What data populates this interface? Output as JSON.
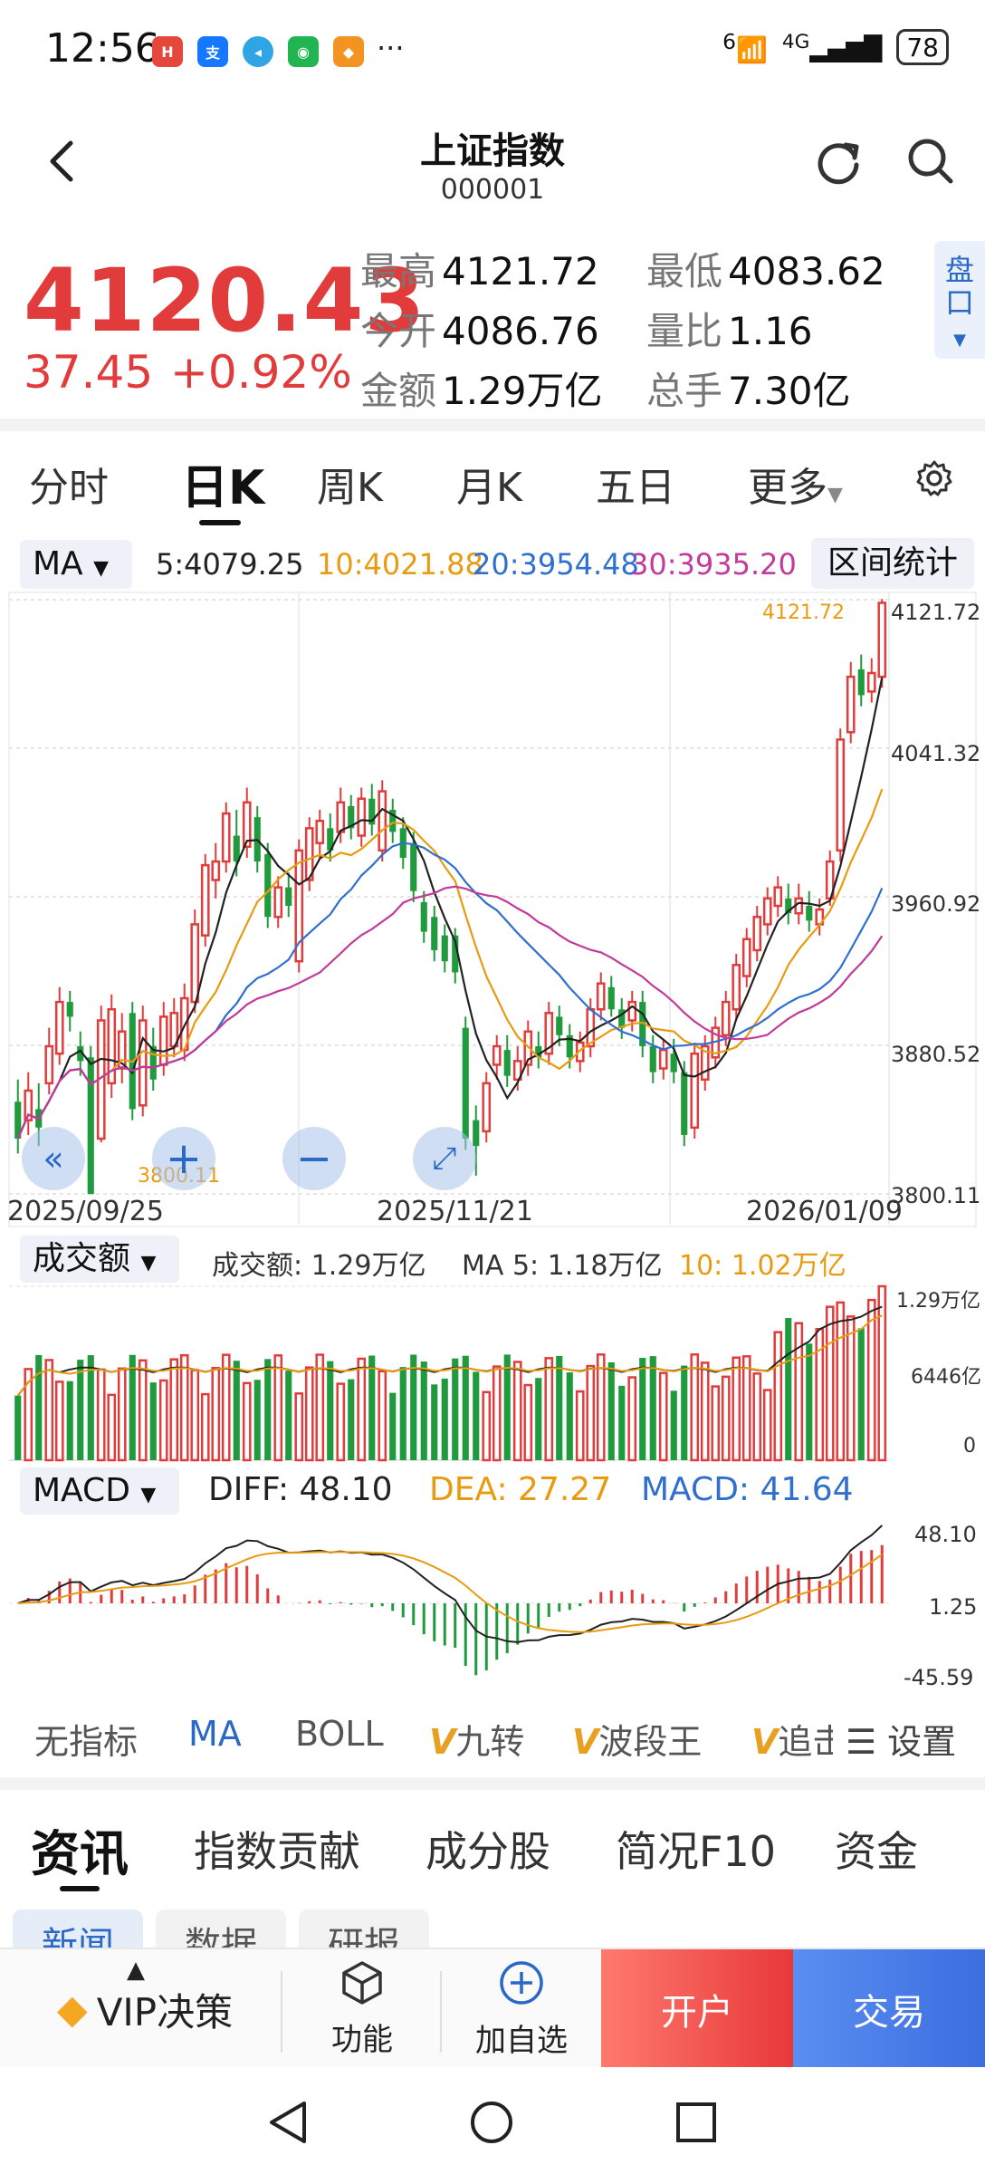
{
  "status": {
    "time": "12:56",
    "app_icons": [
      "huawei",
      "alipay",
      "browser",
      "wechat",
      "app"
    ],
    "more": "···",
    "network_6": "6",
    "network_4g": "4G",
    "battery": "78"
  },
  "header": {
    "title": "上证指数",
    "code": "000001"
  },
  "quote": {
    "price": "4120.43",
    "change": "37.45",
    "change_pct": "+0.92%",
    "high_label": "最高",
    "high": "4121.72",
    "low_label": "最低",
    "low": "4083.62",
    "open_label": "今开",
    "open": "4086.76",
    "ratio_label": "量比",
    "ratio": "1.16",
    "amount_label": "金额",
    "amount": "1.29万亿",
    "turnover_label": "总手",
    "turnover": "7.30亿",
    "pan_label": "盘口"
  },
  "tabs": [
    "分时",
    "日K",
    "周K",
    "月K",
    "五日",
    "更多"
  ],
  "ma": {
    "select": "MA",
    "ma5": "5:4079.25",
    "ma10": "10:4021.88",
    "ma20": "20:3954.48",
    "ma30": "30:3935.20",
    "range_stats": "区间统计"
  },
  "kline": {
    "yticks": [
      "4121.72",
      "4041.32",
      "3960.92",
      "3880.52",
      "3800.11"
    ],
    "xticks": [
      "2025/09/25",
      "2025/11/21",
      "2026/01/09"
    ],
    "max_label": "4121.72",
    "min_label": "3800.11"
  },
  "volume": {
    "select": "成交额",
    "amount": "成交额: 1.29万亿",
    "ma5": "MA 5: 1.18万亿",
    "ma10": "10: 1.02万亿",
    "yticks": [
      "1.29万亿",
      "6446亿",
      "0"
    ]
  },
  "macd": {
    "select": "MACD",
    "diff": "DIFF: 48.10",
    "dea": "DEA: 27.27",
    "macd": "MACD: 41.64",
    "yticks": [
      "48.10",
      "1.25",
      "-45.59"
    ]
  },
  "indicators": [
    "无指标",
    "MA",
    "BOLL",
    "九转",
    "波段王",
    "追击",
    "设置"
  ],
  "news_tabs": [
    "资讯",
    "指数贡献",
    "成分股",
    "简况F10",
    "资金"
  ],
  "chips": [
    "新闻",
    "数据",
    "研报"
  ],
  "bottom": {
    "vip": "VIP决策",
    "func": "功能",
    "add": "加自选",
    "open": "开户",
    "trade": "交易"
  },
  "colors": {
    "up": "#e23b3b",
    "down": "#1f9a3c",
    "ma5": "#222222",
    "ma10": "#e89b10",
    "ma20": "#2f6fd0",
    "ma30": "#c23a9a"
  },
  "chart_data": {
    "type": "candlestick",
    "ylim": [
      3800.11,
      4121.72
    ],
    "x_range": [
      "2025/09/25",
      "2026/01/09"
    ],
    "last_close": 4120.43,
    "ma": {
      "ma5": 4079.25,
      "ma10": 4021.88,
      "ma20": 3954.48,
      "ma30": 3935.2
    },
    "candles": [
      {
        "o": 3850,
        "c": 3830,
        "h": 3862,
        "l": 3822
      },
      {
        "o": 3840,
        "c": 3856,
        "h": 3866,
        "l": 3832
      },
      {
        "o": 3846,
        "c": 3836,
        "h": 3860,
        "l": 3826
      },
      {
        "o": 3860,
        "c": 3880,
        "h": 3890,
        "l": 3854
      },
      {
        "o": 3876,
        "c": 3904,
        "h": 3912,
        "l": 3870
      },
      {
        "o": 3904,
        "c": 3896,
        "h": 3910,
        "l": 3888
      },
      {
        "o": 3880,
        "c": 3872,
        "h": 3888,
        "l": 3864
      },
      {
        "o": 3874,
        "c": 3800,
        "h": 3880,
        "l": 3800
      },
      {
        "o": 3830,
        "c": 3894,
        "h": 3902,
        "l": 3828
      },
      {
        "o": 3860,
        "c": 3900,
        "h": 3908,
        "l": 3852
      },
      {
        "o": 3868,
        "c": 3888,
        "h": 3898,
        "l": 3860
      },
      {
        "o": 3898,
        "c": 3846,
        "h": 3904,
        "l": 3840
      },
      {
        "o": 3848,
        "c": 3894,
        "h": 3902,
        "l": 3842
      },
      {
        "o": 3880,
        "c": 3862,
        "h": 3890,
        "l": 3856
      },
      {
        "o": 3870,
        "c": 3896,
        "h": 3904,
        "l": 3864
      },
      {
        "o": 3880,
        "c": 3898,
        "h": 3906,
        "l": 3874
      },
      {
        "o": 3878,
        "c": 3906,
        "h": 3914,
        "l": 3872
      },
      {
        "o": 3904,
        "c": 3946,
        "h": 3954,
        "l": 3898
      },
      {
        "o": 3940,
        "c": 3978,
        "h": 3984,
        "l": 3934
      },
      {
        "o": 3970,
        "c": 3980,
        "h": 3990,
        "l": 3960
      },
      {
        "o": 3980,
        "c": 4006,
        "h": 4012,
        "l": 3974
      },
      {
        "o": 3994,
        "c": 3980,
        "h": 4008,
        "l": 3972
      },
      {
        "o": 3988,
        "c": 4012,
        "h": 4020,
        "l": 3982
      },
      {
        "o": 4004,
        "c": 3980,
        "h": 4010,
        "l": 3974
      },
      {
        "o": 3984,
        "c": 3950,
        "h": 3990,
        "l": 3944
      },
      {
        "o": 3950,
        "c": 3966,
        "h": 3972,
        "l": 3944
      },
      {
        "o": 3966,
        "c": 3956,
        "h": 3974,
        "l": 3950
      },
      {
        "o": 3926,
        "c": 3986,
        "h": 3992,
        "l": 3920
      },
      {
        "o": 3970,
        "c": 3998,
        "h": 4004,
        "l": 3964
      },
      {
        "o": 3990,
        "c": 4002,
        "h": 4008,
        "l": 3982
      },
      {
        "o": 3998,
        "c": 3986,
        "h": 4006,
        "l": 3980
      },
      {
        "o": 3996,
        "c": 4012,
        "h": 4020,
        "l": 3990
      },
      {
        "o": 4010,
        "c": 3998,
        "h": 4016,
        "l": 3992
      },
      {
        "o": 3994,
        "c": 4014,
        "h": 4020,
        "l": 3988
      },
      {
        "o": 4014,
        "c": 4000,
        "h": 4022,
        "l": 3994
      },
      {
        "o": 3986,
        "c": 4018,
        "h": 4024,
        "l": 3980
      },
      {
        "o": 4008,
        "c": 3996,
        "h": 4014,
        "l": 3990
      },
      {
        "o": 3998,
        "c": 3982,
        "h": 4004,
        "l": 3976
      },
      {
        "o": 3990,
        "c": 3964,
        "h": 3996,
        "l": 3958
      },
      {
        "o": 3958,
        "c": 3942,
        "h": 3964,
        "l": 3936
      },
      {
        "o": 3950,
        "c": 3932,
        "h": 3956,
        "l": 3926
      },
      {
        "o": 3940,
        "c": 3926,
        "h": 3946,
        "l": 3920
      },
      {
        "o": 3940,
        "c": 3920,
        "h": 3944,
        "l": 3914
      },
      {
        "o": 3890,
        "c": 3830,
        "h": 3896,
        "l": 3824
      },
      {
        "o": 3840,
        "c": 3826,
        "h": 3848,
        "l": 3810
      },
      {
        "o": 3834,
        "c": 3860,
        "h": 3866,
        "l": 3828
      },
      {
        "o": 3870,
        "c": 3880,
        "h": 3886,
        "l": 3862
      },
      {
        "o": 3878,
        "c": 3864,
        "h": 3886,
        "l": 3858
      },
      {
        "o": 3862,
        "c": 3872,
        "h": 3880,
        "l": 3856
      },
      {
        "o": 3870,
        "c": 3888,
        "h": 3894,
        "l": 3864
      },
      {
        "o": 3880,
        "c": 3874,
        "h": 3888,
        "l": 3868
      },
      {
        "o": 3876,
        "c": 3898,
        "h": 3904,
        "l": 3870
      },
      {
        "o": 3896,
        "c": 3886,
        "h": 3902,
        "l": 3880
      },
      {
        "o": 3886,
        "c": 3874,
        "h": 3892,
        "l": 3868
      },
      {
        "o": 3872,
        "c": 3882,
        "h": 3888,
        "l": 3866
      },
      {
        "o": 3880,
        "c": 3900,
        "h": 3906,
        "l": 3874
      },
      {
        "o": 3900,
        "c": 3914,
        "h": 3920,
        "l": 3894
      },
      {
        "o": 3912,
        "c": 3900,
        "h": 3918,
        "l": 3896
      },
      {
        "o": 3900,
        "c": 3890,
        "h": 3906,
        "l": 3884
      },
      {
        "o": 3894,
        "c": 3904,
        "h": 3910,
        "l": 3888
      },
      {
        "o": 3904,
        "c": 3880,
        "h": 3910,
        "l": 3874
      },
      {
        "o": 3880,
        "c": 3866,
        "h": 3886,
        "l": 3860
      },
      {
        "o": 3868,
        "c": 3878,
        "h": 3884,
        "l": 3862
      },
      {
        "o": 3876,
        "c": 3866,
        "h": 3884,
        "l": 3860
      },
      {
        "o": 3866,
        "c": 3832,
        "h": 3872,
        "l": 3826
      },
      {
        "o": 3836,
        "c": 3876,
        "h": 3882,
        "l": 3830
      },
      {
        "o": 3862,
        "c": 3880,
        "h": 3886,
        "l": 3856
      },
      {
        "o": 3874,
        "c": 3890,
        "h": 3896,
        "l": 3868
      },
      {
        "o": 3886,
        "c": 3904,
        "h": 3910,
        "l": 3880
      },
      {
        "o": 3900,
        "c": 3924,
        "h": 3930,
        "l": 3894
      },
      {
        "o": 3918,
        "c": 3938,
        "h": 3944,
        "l": 3912
      },
      {
        "o": 3932,
        "c": 3950,
        "h": 3956,
        "l": 3926
      },
      {
        "o": 3946,
        "c": 3960,
        "h": 3966,
        "l": 3940
      },
      {
        "o": 3956,
        "c": 3966,
        "h": 3972,
        "l": 3950
      },
      {
        "o": 3960,
        "c": 3952,
        "h": 3968,
        "l": 3946
      },
      {
        "o": 3952,
        "c": 3960,
        "h": 3968,
        "l": 3946
      },
      {
        "o": 3956,
        "c": 3948,
        "h": 3964,
        "l": 3942
      },
      {
        "o": 3946,
        "c": 3954,
        "h": 3960,
        "l": 3940
      },
      {
        "o": 3960,
        "c": 3980,
        "h": 3986,
        "l": 3956
      },
      {
        "o": 3986,
        "c": 4046,
        "h": 4052,
        "l": 3980
      },
      {
        "o": 4050,
        "c": 4080,
        "h": 4088,
        "l": 4044
      },
      {
        "o": 4084,
        "c": 4070,
        "h": 4092,
        "l": 4064
      },
      {
        "o": 4072,
        "c": 4082,
        "h": 4090,
        "l": 4066
      },
      {
        "o": 4080,
        "c": 4120,
        "h": 4122,
        "l": 4074
      }
    ]
  }
}
